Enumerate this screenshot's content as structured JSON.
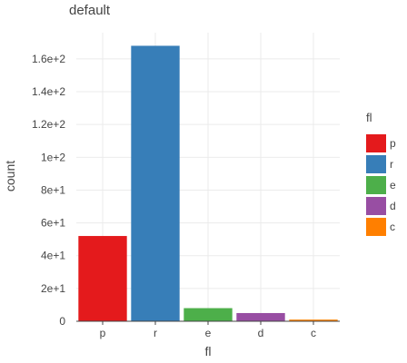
{
  "chart_data": {
    "type": "bar",
    "title": "default",
    "xlabel": "fl",
    "ylabel": "count",
    "categories": [
      "p",
      "r",
      "e",
      "d",
      "c"
    ],
    "values": [
      52,
      168,
      8,
      5,
      1
    ],
    "colors": [
      "#e41a1c",
      "#377eb8",
      "#4daf4a",
      "#984ea3",
      "#ff7f00"
    ],
    "ylim": [
      0,
      176
    ],
    "yticks": [
      0,
      20,
      40,
      60,
      80,
      100,
      120,
      140,
      160
    ],
    "ytick_labels": [
      "0",
      "2e+1",
      "4e+1",
      "6e+1",
      "8e+1",
      "1e+2",
      "1.2e+2",
      "1.4e+2",
      "1.6e+2"
    ],
    "grid": true,
    "legend": {
      "title": "fl",
      "placement": "right",
      "entries": [
        "p",
        "r",
        "e",
        "d",
        "c"
      ]
    }
  }
}
